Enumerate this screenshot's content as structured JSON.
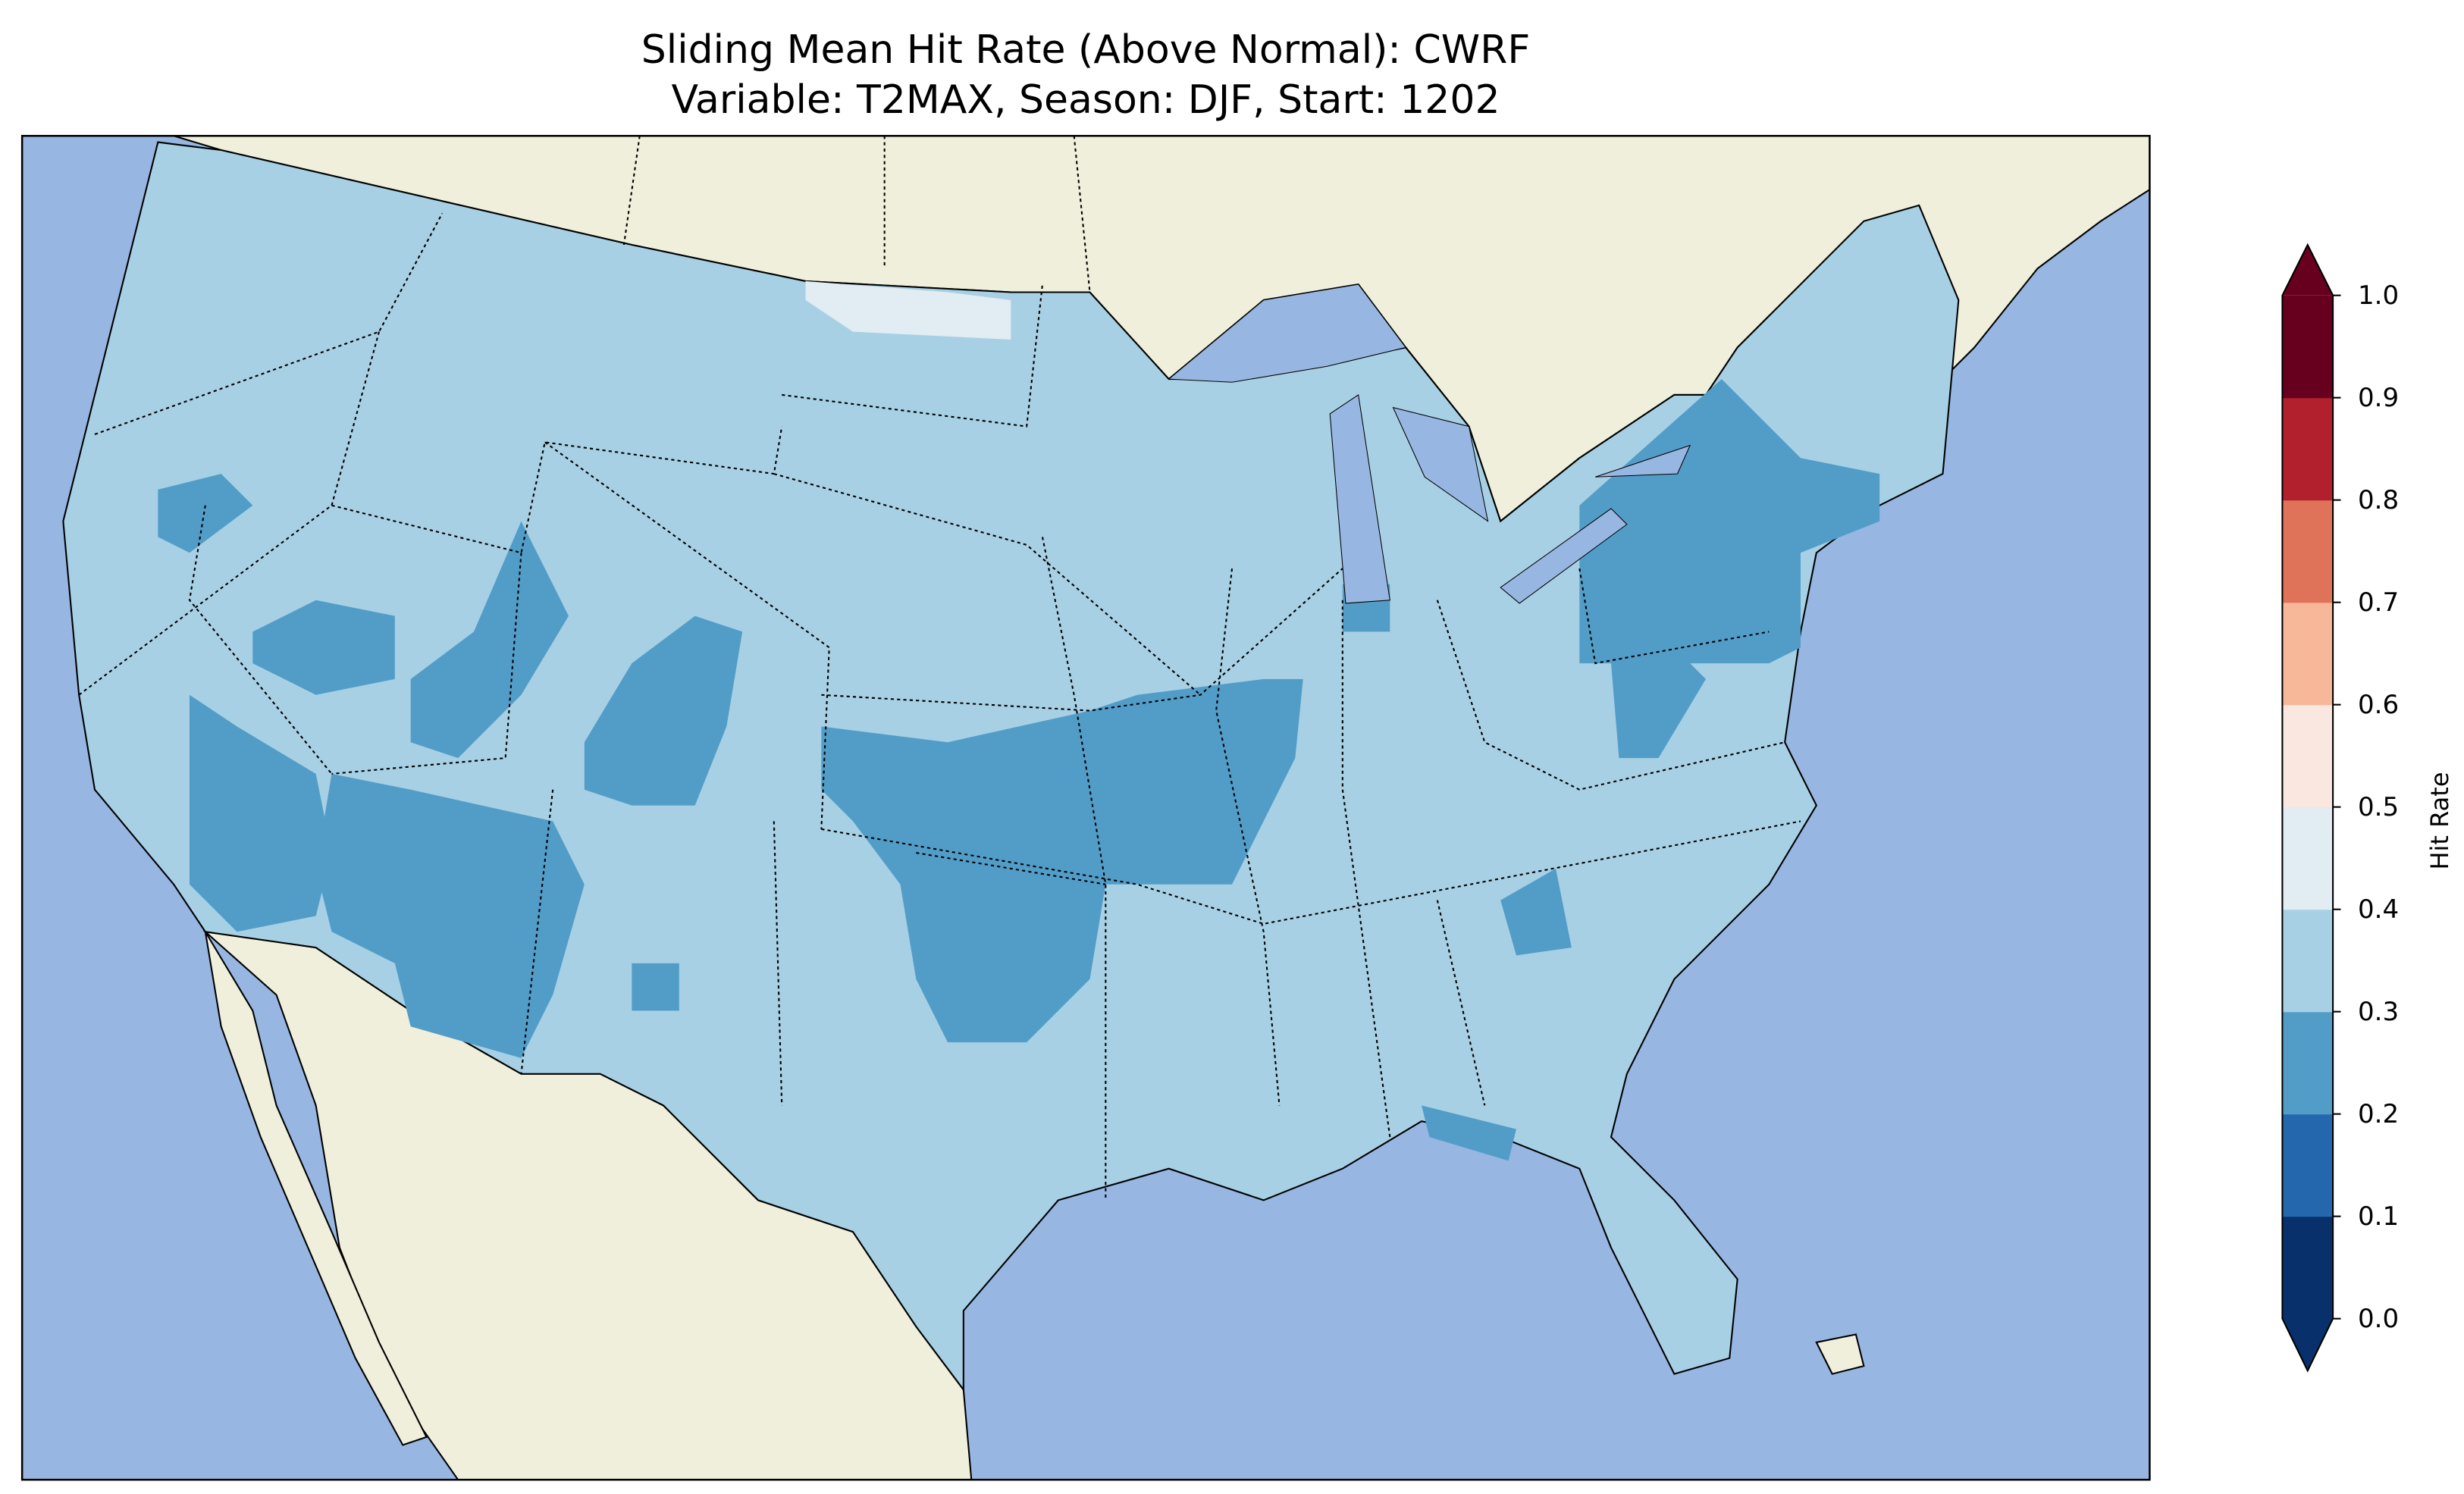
{
  "chart_data": {
    "type": "heatmap",
    "title": "Sliding Mean Hit Rate (Above Normal): CWRF",
    "subtitle": "Variable: T2MAX, Season: DJF, Start: 1202",
    "region": "Contiguous United States",
    "colorbar": {
      "label": "Hit Rate",
      "ticks": [
        "0.0",
        "0.1",
        "0.2",
        "0.3",
        "0.4",
        "0.5",
        "0.6",
        "0.7",
        "0.8",
        "0.9",
        "1.0"
      ],
      "range": [
        0,
        1
      ],
      "extend": "both",
      "colors": [
        "#053061",
        "#2166ac",
        "#4393c3",
        "#92c5de",
        "#d1e5f0",
        "#fddbc7",
        "#f4a582",
        "#d6604d",
        "#b2182b",
        "#67001f"
      ],
      "bin_colors_rendered": [
        "#08306b",
        "#2467ac",
        "#529dc8",
        "#a7d0e4",
        "#e1ecf3",
        "#fae7df",
        "#f7b799",
        "#de7359",
        "#b2202e",
        "#67001f"
      ]
    },
    "dominant_value_range": [
      0.3,
      0.4
    ],
    "lower_value_regions": {
      "range": [
        0.2,
        0.3
      ],
      "areas": [
        "New York",
        "Pennsylvania",
        "New Jersey",
        "Oklahoma",
        "Kansas",
        "Missouri",
        "Arizona",
        "Utah",
        "Colorado",
        "Nevada",
        "California",
        "West Virginia",
        "South Carolina",
        "Florida panhandle",
        "Texas panhandle"
      ]
    },
    "higher_value_regions": {
      "range": [
        0.4,
        0.5
      ],
      "areas": [
        "northern Montana / North Dakota border"
      ]
    },
    "colors": {
      "ocean": "#97b6e1",
      "land": "#efefdb"
    }
  }
}
